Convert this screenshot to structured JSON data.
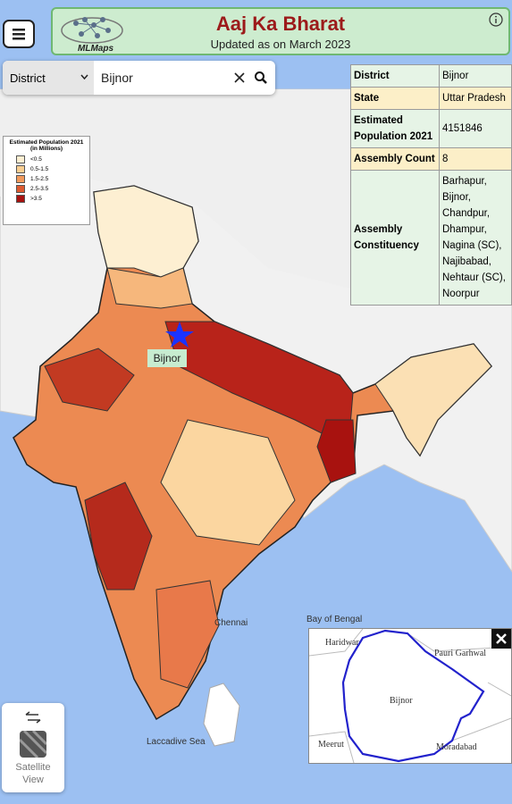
{
  "header": {
    "title": "Aaj Ka Bharat",
    "subtitle": "Updated as on March 2023",
    "logo": "MLMaps"
  },
  "search": {
    "filter": "District",
    "query": "Bijnor"
  },
  "info_table": {
    "rows": [
      [
        "District",
        "Bijnor"
      ],
      [
        "State",
        "Uttar Pradesh"
      ],
      [
        "Estimated Population 2021",
        "4151846"
      ],
      [
        "Assembly Count",
        "8"
      ],
      [
        "Assembly Constituency",
        "Barhapur, Bijnor, Chandpur, Dhampur, Nagina (SC), Najibabad, Nehtaur (SC), Noorpur"
      ]
    ]
  },
  "legend": {
    "title": "Estimated Population 2021 (in Millions)",
    "items": [
      {
        "label": "<0.5",
        "color": "#fdefd2"
      },
      {
        "label": "0.5-1.5",
        "color": "#fbcf92"
      },
      {
        "label": "1.5-2.5",
        "color": "#f29a5c"
      },
      {
        "label": "2.5-3.5",
        "color": "#dd5a30"
      },
      {
        "label": ">3.5",
        "color": "#a8120f"
      }
    ]
  },
  "map": {
    "marker_label": "Bijnor",
    "labels": [
      "Chennai",
      "Bay of Bengal",
      "Laccadive Sea"
    ]
  },
  "inset": {
    "labels": [
      "Haridwar",
      "Pauri Garhwal",
      "Bijnor",
      "Meerut",
      "Moradabad"
    ]
  },
  "satellite_button": "Satellite View"
}
